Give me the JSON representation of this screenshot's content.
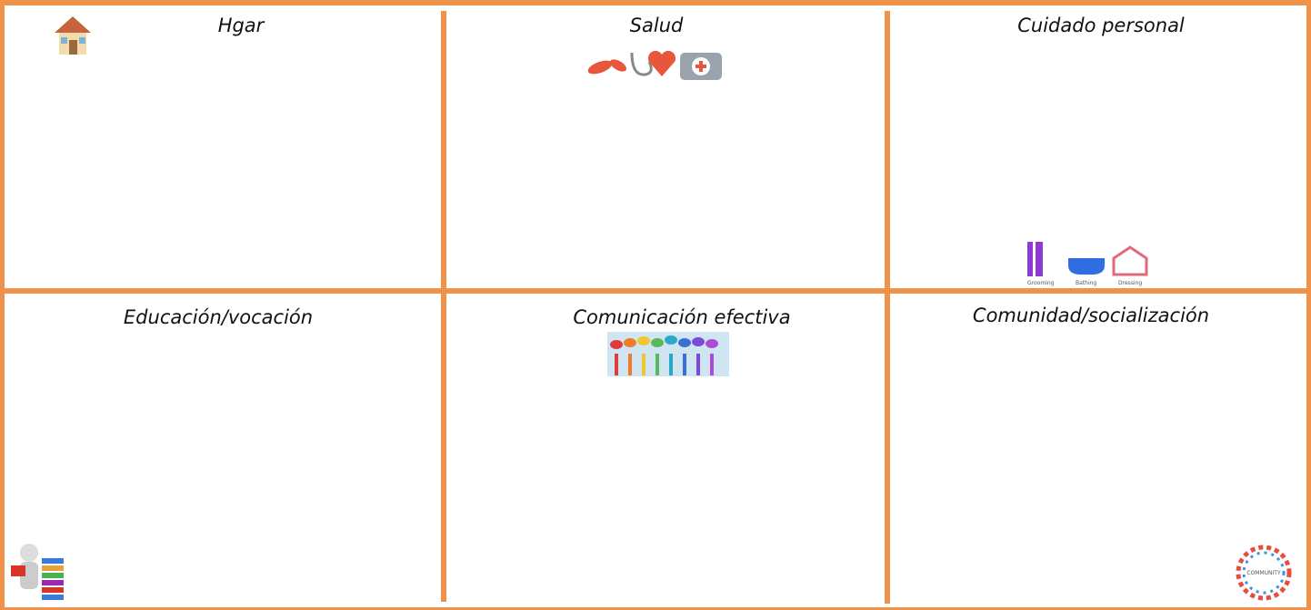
{
  "cells": [
    {
      "title": "Hgar"
    },
    {
      "title": "Salud"
    },
    {
      "title": "Cuidado personal",
      "icon_labels": [
        "Grooming",
        "Bathing",
        "Dressing"
      ]
    },
    {
      "title": "Educación/vocación"
    },
    {
      "title": "Comunicación efectiva"
    },
    {
      "title": "Comunidad/socialización",
      "icon_label": "COMMUNITY"
    }
  ]
}
